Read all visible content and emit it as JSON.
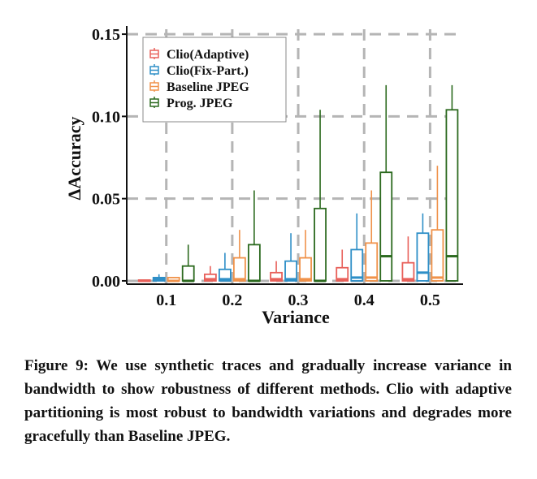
{
  "chart_data": {
    "type": "box",
    "xlabel": "Variance",
    "ylabel": "ΔAccuracy",
    "categories": [
      "0.1",
      "0.2",
      "0.3",
      "0.4",
      "0.5"
    ],
    "ylim": [
      -0.002,
      0.153
    ],
    "yticks": [
      "0.00",
      "0.05",
      "0.10",
      "0.15"
    ],
    "grid": true,
    "legend_position": "top-left",
    "series": [
      {
        "name": "Clio(Adaptive)",
        "color": "#e8605a",
        "boxes": [
          {
            "whisker_low": 0,
            "q1": 0,
            "median": 0,
            "q3": 0.0005,
            "whisker_high": 0.0005
          },
          {
            "whisker_low": 0,
            "q1": 0,
            "median": 0.001,
            "q3": 0.004,
            "whisker_high": 0.009
          },
          {
            "whisker_low": 0,
            "q1": 0,
            "median": 0.001,
            "q3": 0.005,
            "whisker_high": 0.012
          },
          {
            "whisker_low": 0,
            "q1": 0,
            "median": 0.001,
            "q3": 0.008,
            "whisker_high": 0.019
          },
          {
            "whisker_low": 0,
            "q1": 0,
            "median": 0.001,
            "q3": 0.011,
            "whisker_high": 0.027
          }
        ]
      },
      {
        "name": "Clio(Fix-Part.)",
        "color": "#2e8fc7",
        "boxes": [
          {
            "whisker_low": 0,
            "q1": 0,
            "median": 0.001,
            "q3": 0.002,
            "whisker_high": 0.004
          },
          {
            "whisker_low": 0,
            "q1": 0,
            "median": 0.001,
            "q3": 0.007,
            "whisker_high": 0.017
          },
          {
            "whisker_low": 0,
            "q1": 0,
            "median": 0.001,
            "q3": 0.012,
            "whisker_high": 0.029
          },
          {
            "whisker_low": 0,
            "q1": 0,
            "median": 0.002,
            "q3": 0.019,
            "whisker_high": 0.041
          },
          {
            "whisker_low": 0,
            "q1": 0,
            "median": 0.005,
            "q3": 0.029,
            "whisker_high": 0.041
          }
        ]
      },
      {
        "name": "Baseline JPEG",
        "color": "#f0924a",
        "boxes": [
          {
            "whisker_low": 0,
            "q1": 0,
            "median": 0,
            "q3": 0.002,
            "whisker_high": 0.002
          },
          {
            "whisker_low": 0,
            "q1": 0,
            "median": 0.001,
            "q3": 0.014,
            "whisker_high": 0.031
          },
          {
            "whisker_low": 0,
            "q1": 0,
            "median": 0.001,
            "q3": 0.014,
            "whisker_high": 0.031
          },
          {
            "whisker_low": 0,
            "q1": 0,
            "median": 0.002,
            "q3": 0.023,
            "whisker_high": 0.055
          },
          {
            "whisker_low": 0,
            "q1": 0,
            "median": 0.002,
            "q3": 0.031,
            "whisker_high": 0.07
          }
        ]
      },
      {
        "name": "Prog. JPEG",
        "color": "#2c6a1f",
        "boxes": [
          {
            "whisker_low": 0,
            "q1": 0,
            "median": 0,
            "q3": 0.009,
            "whisker_high": 0.022
          },
          {
            "whisker_low": 0,
            "q1": 0,
            "median": 0,
            "q3": 0.022,
            "whisker_high": 0.055
          },
          {
            "whisker_low": 0,
            "q1": 0,
            "median": 0,
            "q3": 0.044,
            "whisker_high": 0.104
          },
          {
            "whisker_low": 0,
            "q1": 0,
            "median": 0.015,
            "q3": 0.066,
            "whisker_high": 0.119
          },
          {
            "whisker_low": 0,
            "q1": 0,
            "median": 0.015,
            "q3": 0.104,
            "whisker_high": 0.119
          }
        ]
      }
    ]
  },
  "caption": "Figure 9: We use synthetic traces and gradually increase variance in bandwidth to show robustness of different methods. Clio with adaptive partitioning is most robust to bandwidth variations and degrades more gracefully than Baseline JPEG."
}
